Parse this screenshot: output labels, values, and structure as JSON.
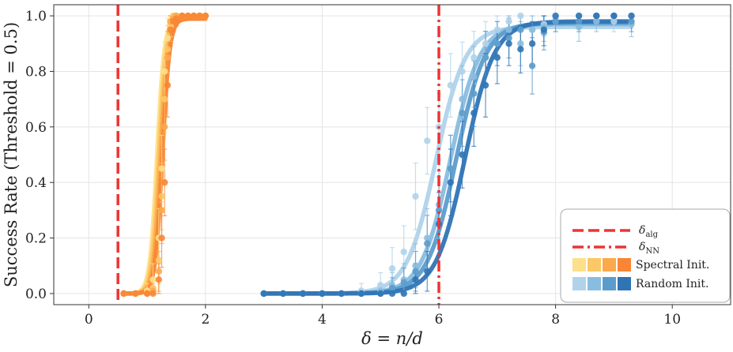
{
  "chart_data": {
    "type": "scatter",
    "xlabel": "δ = n/d",
    "ylabel": "Success Rate (Threshold = 0.5)",
    "xlim": [
      -0.6,
      11
    ],
    "ylim": [
      -0.04,
      1.04
    ],
    "xticks": [
      0,
      2,
      4,
      6,
      8,
      10
    ],
    "yticks": [
      0.0,
      0.2,
      0.4,
      0.6,
      0.8,
      1.0
    ],
    "ytick_labels": [
      "0.0",
      "0.2",
      "0.4",
      "0.6",
      "0.8",
      "1.0"
    ],
    "grid": true,
    "vlines": [
      {
        "name": "δ_alg",
        "x": 0.5,
        "style": "dashed",
        "color": "#ee3333"
      },
      {
        "name": "δ_NN",
        "x": 6.0,
        "style": "dashdot",
        "color": "#ee3333"
      }
    ],
    "legend": {
      "position": "bottom-right",
      "entries": [
        {
          "label_main": "δ",
          "label_sub": "alg",
          "kind": "dashed"
        },
        {
          "label_main": "δ",
          "label_sub": "NN",
          "kind": "dashdot"
        },
        {
          "label": "Spectral Init.",
          "kind": "swatches",
          "colors": [
            "#fde08a",
            "#fcc765",
            "#fca94b",
            "#f98535"
          ]
        },
        {
          "label": "Random Init.",
          "kind": "swatches",
          "colors": [
            "#b0d3ea",
            "#89bde0",
            "#5c9ccc",
            "#2f74b5"
          ]
        }
      ]
    },
    "spectral_x": [
      0.6,
      0.8,
      1.0,
      1.1,
      1.2,
      1.25,
      1.3,
      1.35,
      1.4,
      1.45,
      1.5,
      1.6,
      1.7,
      1.8,
      1.9,
      2.0
    ],
    "random_x": [
      3.0,
      3.33,
      3.67,
      4.0,
      4.33,
      4.67,
      5.0,
      5.2,
      5.4,
      5.6,
      5.8,
      6.0,
      6.2,
      6.4,
      6.6,
      6.8,
      7.0,
      7.2,
      7.4,
      7.6,
      7.8,
      8.0,
      8.4,
      8.7,
      9.0,
      9.3
    ],
    "series": [
      {
        "name": "Spectral Init.",
        "group": "spectral",
        "color": "#fde08a",
        "fit": {
          "midpoint": 1.17,
          "slope": 16,
          "upper": 0.99
        },
        "values": [
          0.0,
          0.0,
          0.01,
          0.05,
          0.2,
          0.45,
          0.8,
          0.92,
          0.97,
          1.0,
          1.0,
          1.0,
          1.0,
          1.0,
          1.0,
          1.0
        ]
      },
      {
        "name": "Spectral Init.",
        "group": "spectral",
        "color": "#fcc765",
        "fit": {
          "midpoint": 1.2,
          "slope": 16,
          "upper": 0.99
        },
        "values": [
          0.0,
          0.0,
          0.0,
          0.02,
          0.12,
          0.35,
          0.7,
          0.88,
          0.96,
          1.0,
          1.0,
          1.0,
          1.0,
          1.0,
          1.0,
          1.0
        ]
      },
      {
        "name": "Spectral Init.",
        "group": "spectral",
        "color": "#fca94b",
        "fit": {
          "midpoint": 1.23,
          "slope": 16,
          "upper": 0.99
        },
        "values": [
          0.0,
          0.0,
          0.0,
          0.01,
          0.08,
          0.3,
          0.6,
          0.85,
          0.98,
          0.99,
          1.0,
          1.0,
          1.0,
          1.0,
          1.0,
          1.0
        ]
      },
      {
        "name": "Spectral Init.",
        "group": "spectral",
        "color": "#f98535",
        "fit": {
          "midpoint": 1.26,
          "slope": 16,
          "upper": 0.99
        },
        "values": [
          0.0,
          0.0,
          0.0,
          0.0,
          0.05,
          0.2,
          0.4,
          0.75,
          0.95,
          0.98,
          0.99,
          1.0,
          1.0,
          1.0,
          1.0,
          1.0
        ]
      },
      {
        "name": "Random Init.",
        "group": "random",
        "color": "#b0d3ea",
        "fit": {
          "midpoint": 5.95,
          "slope": 4,
          "upper": 0.96
        },
        "values": [
          0.0,
          0.0,
          0.0,
          0.0,
          0.0,
          0.01,
          0.03,
          0.09,
          0.15,
          0.35,
          0.55,
          0.6,
          0.75,
          0.8,
          0.85,
          0.9,
          0.95,
          0.98,
          1.0,
          0.95,
          0.97,
          0.99,
          1.0,
          1.0,
          0.98,
          1.0
        ]
      },
      {
        "name": "Random Init.",
        "group": "random",
        "color": "#89bde0",
        "fit": {
          "midpoint": 6.2,
          "slope": 4,
          "upper": 0.97
        },
        "values": [
          0.0,
          0.0,
          0.0,
          0.0,
          0.0,
          0.0,
          0.01,
          0.03,
          0.05,
          0.1,
          0.2,
          0.32,
          0.45,
          0.7,
          0.78,
          0.85,
          0.9,
          0.95,
          0.9,
          0.95,
          0.96,
          0.98,
          0.96,
          0.98,
          1.0,
          0.97
        ]
      },
      {
        "name": "Random Init.",
        "group": "random",
        "color": "#5c9ccc",
        "fit": {
          "midpoint": 6.3,
          "slope": 4,
          "upper": 0.975
        },
        "values": [
          0.0,
          0.0,
          0.0,
          0.0,
          0.0,
          0.0,
          0.0,
          0.02,
          0.04,
          0.08,
          0.18,
          0.3,
          0.45,
          0.65,
          0.72,
          0.85,
          0.9,
          0.92,
          0.95,
          0.82,
          0.94,
          0.98,
          0.98,
          1.0,
          1.0,
          0.98
        ]
      },
      {
        "name": "Random Init.",
        "group": "random",
        "color": "#2f74b5",
        "fit": {
          "midpoint": 6.45,
          "slope": 4,
          "upper": 0.98
        },
        "values": [
          0.0,
          0.0,
          0.0,
          0.0,
          0.0,
          0.0,
          0.0,
          0.0,
          0.0,
          0.05,
          0.08,
          0.25,
          0.4,
          0.5,
          0.65,
          0.75,
          0.85,
          0.9,
          0.88,
          0.9,
          0.95,
          1.0,
          1.0,
          1.0,
          1.0,
          1.0
        ]
      }
    ]
  }
}
